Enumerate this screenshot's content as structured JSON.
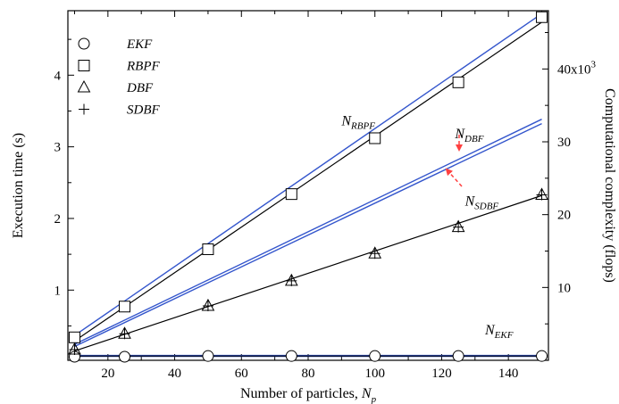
{
  "chart_data": {
    "type": "line",
    "x_label_main": "Number of particles, ",
    "x_label_var": "N",
    "x_label_sub": "p",
    "y_label_left": "Execution time (s)",
    "y_label_right": "Computational complexity (flops)",
    "x_range": [
      8,
      152
    ],
    "y_left_range": [
      0.02,
      4.9
    ],
    "y_right_range": [
      0,
      48000
    ],
    "x_ticks": [
      20,
      40,
      60,
      80,
      100,
      120,
      140
    ],
    "y_left_ticks": [
      1,
      2,
      3,
      4
    ],
    "y_right_ticks": [
      10000,
      20000,
      30000,
      40000
    ],
    "y_right_tick_labels": [
      "10",
      "20",
      "30",
      "40x10"
    ],
    "y_right_tick_superscript": "3",
    "series": [
      {
        "name": "EKF",
        "marker": "circle",
        "x": [
          10,
          25,
          50,
          75,
          100,
          125,
          150
        ],
        "time": [
          0.07,
          0.07,
          0.08,
          0.08,
          0.08,
          0.08,
          0.08
        ],
        "fit_time": [
          0.08,
          0.08
        ]
      },
      {
        "name": "RBPF",
        "marker": "square",
        "x": [
          10,
          25,
          50,
          75,
          100,
          125,
          150
        ],
        "time": [
          0.34,
          0.77,
          1.57,
          2.34,
          3.12,
          3.9,
          4.81
        ],
        "fit_time": [
          0.29,
          4.74
        ]
      },
      {
        "name": "DBF",
        "marker": "triangle",
        "x": [
          10,
          25,
          50,
          75,
          100,
          125,
          150
        ],
        "time": [
          0.17,
          0.39,
          0.78,
          1.13,
          1.51,
          1.88,
          2.33
        ],
        "fit_time": [
          0.15,
          2.32
        ]
      },
      {
        "name": "SDBF",
        "marker": "plus",
        "x": [
          10,
          25,
          50,
          75,
          100,
          125,
          150
        ],
        "time": [
          0.17,
          0.39,
          0.78,
          1.13,
          1.51,
          1.88,
          2.33
        ]
      }
    ],
    "complexity_lines": [
      {
        "name": "RBPF",
        "x": [
          10,
          150
        ],
        "flops": [
          3400,
          47600
        ]
      },
      {
        "name": "DBF",
        "x": [
          10,
          150
        ],
        "flops": [
          2200,
          33100
        ]
      },
      {
        "name": "SDBF",
        "x": [
          10,
          150
        ],
        "flops": [
          1900,
          32500
        ]
      },
      {
        "name": "EKF",
        "x": [
          10,
          150
        ],
        "flops": [
          600,
          600
        ]
      }
    ],
    "annotations": [
      {
        "name": "N_RBPF",
        "main": "N",
        "sub": "RBPF",
        "x": 90,
        "y_time": 3.3
      },
      {
        "name": "N_DBF",
        "main": "N",
        "sub": "DBF",
        "x": 124,
        "y_time": 3.12
      },
      {
        "name": "N_SDBF",
        "main": "N",
        "sub": "SDBF",
        "x": 127,
        "y_time": 2.18
      },
      {
        "name": "N_EKF",
        "main": "N",
        "sub": "EKF",
        "x": 133,
        "y_time": 0.38
      }
    ],
    "arrow_color": "#ff4040",
    "fit_line_color": "#000000",
    "complexity_line_color": "#3355cc",
    "legend_position": "top-left",
    "grid": false
  }
}
